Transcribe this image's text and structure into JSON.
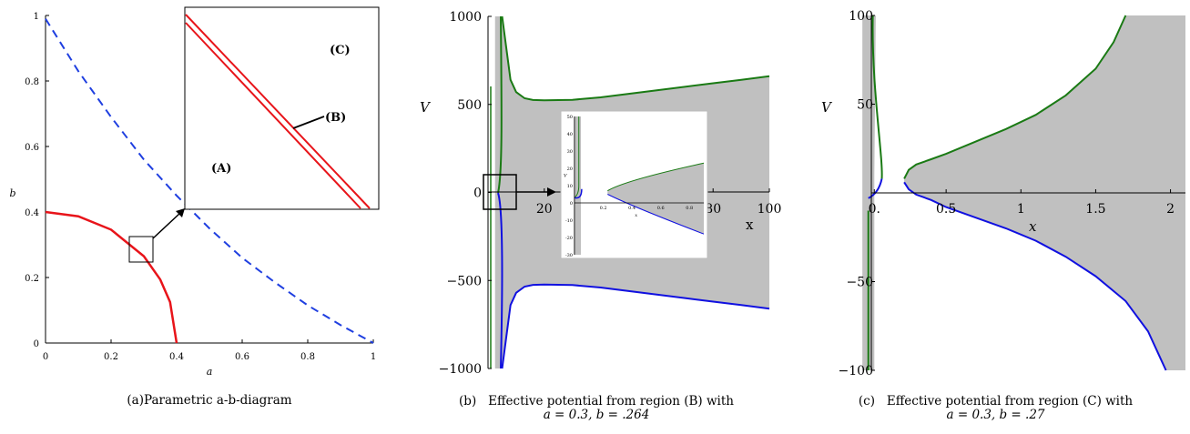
{
  "chart_data": [
    {
      "type": "line",
      "panel": "a",
      "caption": {
        "prefix": "(a)",
        "text": "Parametric a-b-diagram"
      },
      "xlabel": "a",
      "ylabel": "b",
      "xlim": [
        0,
        1
      ],
      "ylim": [
        0,
        1
      ],
      "xticks": [
        0,
        0.2,
        0.4,
        0.6,
        0.8,
        1
      ],
      "yticks": [
        0,
        0.2,
        0.4,
        0.6,
        0.8,
        1
      ],
      "series": [
        {
          "style": "solid",
          "color": "#e8141a",
          "x": [
            0,
            0.1,
            0.2,
            0.3,
            0.35,
            0.38,
            0.4
          ],
          "y": [
            0.4,
            0.387,
            0.346,
            0.265,
            0.194,
            0.125,
            0
          ]
        },
        {
          "style": "dashed",
          "color": "#1f3fe0",
          "x": [
            0,
            0.1,
            0.2,
            0.3,
            0.4,
            0.5,
            0.6,
            0.7,
            0.8,
            0.9,
            1
          ],
          "y": [
            0.99,
            0.83,
            0.69,
            0.56,
            0.45,
            0.35,
            0.26,
            0.185,
            0.115,
            0.055,
            0
          ]
        }
      ],
      "inset": {
        "labels": [
          "(A)",
          "(B)",
          "(C)"
        ]
      }
    },
    {
      "type": "area",
      "panel": "b",
      "caption": {
        "prefix": "(b)",
        "line1": "Effective potential from region (B) with",
        "line2": "a = 0.3, b = .264"
      },
      "xlabel": "x",
      "ylabel": "V",
      "xlim": [
        0,
        100
      ],
      "ylim": [
        -1000,
        1000
      ],
      "xticks": [
        "20",
        "80",
        "100"
      ],
      "yticks": [
        "1000",
        "500",
        "0",
        "−500",
        "−1000"
      ],
      "series": [
        {
          "color": "#1a7a14",
          "x": [
            5,
            8,
            10,
            13,
            16,
            20,
            30,
            40,
            50,
            60,
            70,
            80,
            90,
            100
          ],
          "y": [
            1000,
            640,
            570,
            535,
            525,
            523,
            526,
            540,
            560,
            580,
            600,
            620,
            640,
            660
          ]
        },
        {
          "color": "#1010e0",
          "x": [
            5,
            8,
            10,
            13,
            16,
            20,
            30,
            40,
            50,
            60,
            70,
            80,
            90,
            100
          ],
          "y": [
            -1000,
            -640,
            -570,
            -535,
            -525,
            -523,
            -526,
            -540,
            -560,
            -580,
            -600,
            -620,
            -640,
            -660
          ]
        }
      ],
      "inset": {
        "xticks": [
          "0.2",
          "0.4",
          "0.6",
          "0.8"
        ],
        "yticks": [
          "50",
          "40",
          "30",
          "20",
          "10",
          "0",
          "-10",
          "-20",
          "-30"
        ],
        "xlabel": "x",
        "ylabel": "V"
      }
    },
    {
      "type": "area",
      "panel": "c",
      "caption": {
        "prefix": "(c)",
        "line1": "Effective potential from region (C) with",
        "line2": "a = 0.3, b = .27"
      },
      "xlabel": "x",
      "ylabel": "V",
      "xlim": [
        0,
        2.1
      ],
      "ylim": [
        -100,
        100
      ],
      "xticks": [
        "0.",
        "0.5",
        "1",
        "1.5",
        "2"
      ],
      "yticks": [
        "100",
        "50",
        "−50",
        "−100"
      ],
      "series": [
        {
          "color": "#1a7a14",
          "x": [
            0.22,
            0.25,
            0.3,
            0.4,
            0.5,
            0.7,
            0.9,
            1.1,
            1.3,
            1.5,
            1.62,
            1.7
          ],
          "y": [
            8,
            13,
            16,
            19,
            22,
            29,
            36,
            44,
            55,
            70,
            85,
            100
          ]
        },
        {
          "color": "#1010e0",
          "x": [
            0.22,
            0.25,
            0.3,
            0.4,
            0.5,
            0.7,
            0.9,
            1.1,
            1.3,
            1.5,
            1.7,
            1.85,
            1.97
          ],
          "y": [
            6,
            2,
            -1,
            -4,
            -8,
            -14,
            -20,
            -27,
            -36,
            -47,
            -61,
            -78,
            -100
          ]
        }
      ]
    }
  ]
}
